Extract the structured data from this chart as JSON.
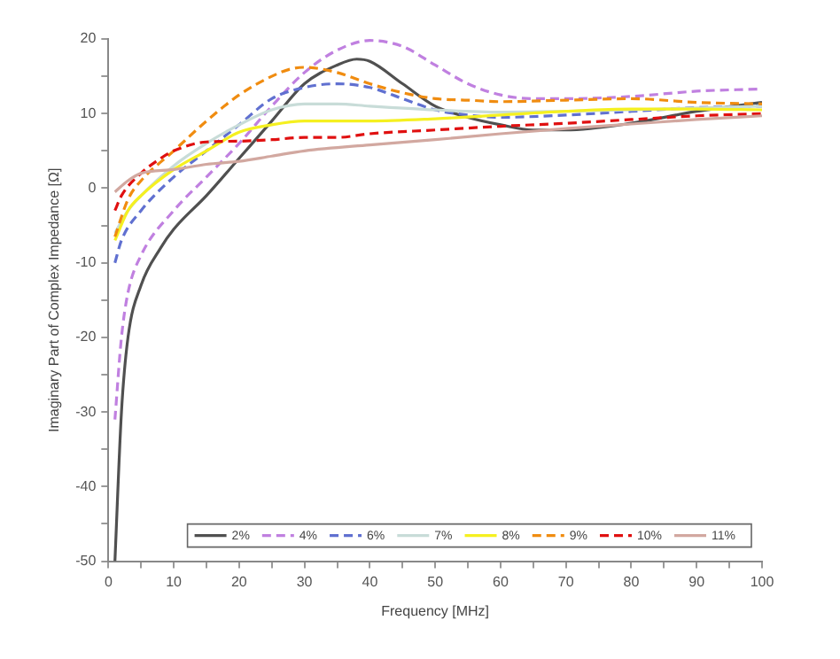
{
  "chart_data": {
    "type": "line",
    "xlabel": "Frequency [MHz]",
    "ylabel": "Imaginary Part of Complex Impedance [Ω]",
    "xlim": [
      0,
      100
    ],
    "xticks": [
      0,
      {
        "value": 5,
        "label": null
      },
      10,
      {
        "value": 15,
        "label": null
      },
      20,
      {
        "value": 25,
        "label": null
      },
      30,
      {
        "value": 35,
        "label": null
      },
      40,
      {
        "value": 45,
        "label": null
      },
      50,
      {
        "value": 55,
        "label": null
      },
      60,
      {
        "value": 65,
        "label": null
      },
      70,
      {
        "value": 75,
        "label": null
      },
      80,
      {
        "value": 85,
        "label": null
      },
      90,
      {
        "value": 95,
        "label": null
      },
      100
    ],
    "ylim": [
      -50,
      20
    ],
    "yticks": [
      -50,
      {
        "value": -45,
        "label": null
      },
      -40,
      {
        "value": -35,
        "label": null
      },
      -30,
      {
        "value": -25,
        "label": null
      },
      -20,
      {
        "value": -15,
        "label": null
      },
      -10,
      {
        "value": -5,
        "label": null
      },
      0,
      {
        "value": 5,
        "label": null
      },
      10,
      {
        "value": 15,
        "label": null
      },
      20
    ],
    "grid": false,
    "legend": "bottom right",
    "marker": "none",
    "series": [
      {
        "name": "2%",
        "color": "#505050",
        "line_style": "solid",
        "x": [
          1,
          2,
          3,
          5,
          8,
          10,
          15,
          20,
          25,
          30,
          35,
          38,
          40,
          45,
          50,
          55,
          60,
          65,
          70,
          80,
          90,
          100
        ],
        "values": [
          -50,
          -30,
          -20,
          -13,
          -8,
          -5.5,
          -1,
          4,
          9,
          14,
          16.5,
          17.3,
          17,
          14,
          11,
          9.5,
          8.5,
          7.8,
          7.8,
          8.7,
          10.3,
          11.5
        ]
      },
      {
        "name": "4%",
        "color": "#c080e0",
        "line_style": "dashed",
        "x": [
          1,
          2,
          3,
          5,
          10,
          15,
          20,
          25,
          30,
          35,
          40,
          45,
          50,
          55,
          60,
          65,
          70,
          80,
          90,
          100
        ],
        "values": [
          -31,
          -20,
          -14,
          -9,
          -3,
          1.5,
          6,
          11,
          15.5,
          18.5,
          19.8,
          19,
          16.5,
          14,
          12.5,
          12,
          12,
          12.3,
          13,
          13.3
        ]
      },
      {
        "name": "6%",
        "color": "#6070d0",
        "line_style": "dashed",
        "x": [
          1,
          2,
          5,
          10,
          15,
          20,
          25,
          30,
          35,
          40,
          45,
          50,
          55,
          60,
          70,
          80,
          90,
          100
        ],
        "values": [
          -10,
          -7,
          -3,
          1.5,
          5,
          8.5,
          12,
          13.5,
          14,
          13.5,
          12,
          10.5,
          9.8,
          9.5,
          9.8,
          10.3,
          10.8,
          11
        ]
      },
      {
        "name": "7%",
        "color": "#c8dcd8",
        "line_style": "solid",
        "x": [
          1,
          3,
          5,
          10,
          15,
          20,
          25,
          30,
          35,
          40,
          50,
          60,
          70,
          80,
          100
        ],
        "values": [
          -6,
          -3,
          -1,
          3,
          6,
          8.5,
          10.5,
          11.3,
          11.3,
          11,
          10.5,
          10.2,
          10.3,
          10.5,
          11
        ]
      },
      {
        "name": "8%",
        "color": "#f5f020",
        "line_style": "solid",
        "x": [
          1,
          3,
          5,
          10,
          15,
          20,
          25,
          30,
          40,
          50,
          60,
          70,
          80,
          90,
          100
        ],
        "values": [
          -7,
          -3,
          -1,
          2.5,
          5,
          7.5,
          8.5,
          9,
          9,
          9.3,
          9.8,
          10.3,
          10.6,
          10.6,
          10.5
        ]
      },
      {
        "name": "9%",
        "color": "#f08c10",
        "line_style": "dashed",
        "x": [
          1,
          3,
          5,
          10,
          15,
          20,
          25,
          28,
          30,
          35,
          40,
          45,
          50,
          55,
          60,
          70,
          80,
          90,
          100
        ],
        "values": [
          -6.5,
          -1.5,
          1,
          5,
          9,
          12.5,
          15,
          16,
          16.2,
          15.5,
          14,
          12.8,
          12,
          11.8,
          11.6,
          11.8,
          12,
          11.5,
          11.3
        ]
      },
      {
        "name": "10%",
        "color": "#e01010",
        "line_style": "dashed",
        "x": [
          1,
          2,
          5,
          8,
          10,
          15,
          20,
          25,
          30,
          35,
          40,
          50,
          60,
          70,
          80,
          90,
          100
        ],
        "values": [
          -3,
          -1,
          2,
          4,
          5,
          6.2,
          6.3,
          6.5,
          6.8,
          6.8,
          7.3,
          7.8,
          8.3,
          8.7,
          9.2,
          9.7,
          10
        ]
      },
      {
        "name": "11%",
        "color": "#d2a8a0",
        "line_style": "solid",
        "x": [
          1,
          3,
          5,
          10,
          15,
          20,
          25,
          30,
          40,
          50,
          60,
          70,
          80,
          90,
          100
        ],
        "values": [
          -0.5,
          1,
          2,
          2.5,
          3.2,
          3.6,
          4.3,
          5,
          5.8,
          6.5,
          7.3,
          8,
          8.6,
          9.2,
          9.7
        ]
      }
    ]
  }
}
